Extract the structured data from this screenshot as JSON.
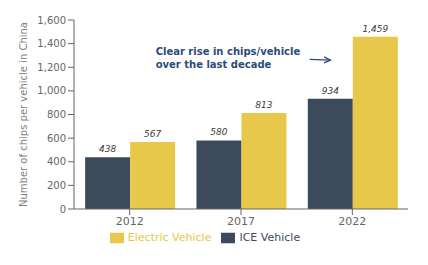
{
  "chart_data": {
    "type": "bar",
    "categories": [
      "2012",
      "2017",
      "2022"
    ],
    "series": [
      {
        "name": "ICE Vehicle",
        "color": "#3d4a5c",
        "values": [
          438,
          580,
          934
        ],
        "value_labels": [
          "438",
          "580",
          "934"
        ]
      },
      {
        "name": "Electric Vehicle",
        "color": "#e8c84a",
        "values": [
          567,
          813,
          1459
        ],
        "value_labels": [
          "567",
          "813",
          "1,459"
        ]
      }
    ],
    "ylabel": "Number of chips per vehicle in China",
    "ylim": [
      0,
      1600
    ],
    "yticks": [
      0,
      200,
      400,
      600,
      800,
      {
        "value": 1000,
        "label": "1,000"
      },
      {
        "value": 1200,
        "label": "1,200"
      },
      {
        "value": 1400,
        "label": "1,400"
      },
      {
        "value": 1600,
        "label": "1,600"
      }
    ],
    "annotations": [
      {
        "text": "Clear rise in chips/vehicle\nover the last decade",
        "color": "#2e4a7a"
      }
    ],
    "data_labels": true,
    "grid": false,
    "legend": "bottom"
  }
}
